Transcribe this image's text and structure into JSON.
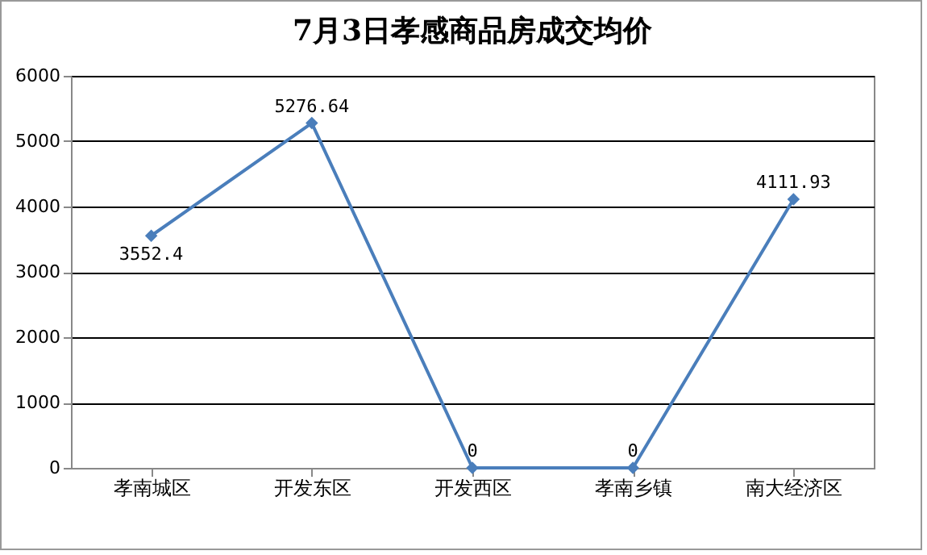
{
  "chart_data": {
    "type": "line",
    "title": "7月3日孝感商品房成交均价",
    "categories": [
      "孝南城区",
      "开发东区",
      "开发西区",
      "孝南乡镇",
      "南大经济区"
    ],
    "values": [
      3552.4,
      5276.64,
      0,
      0,
      4111.93
    ],
    "color": "#4a7ebb",
    "marker": "diamond",
    "data_labels": true,
    "grid": "y",
    "ylim": [
      0,
      6000
    ],
    "yticks": [
      0,
      1000,
      2000,
      3000,
      4000,
      5000,
      6000
    ]
  }
}
